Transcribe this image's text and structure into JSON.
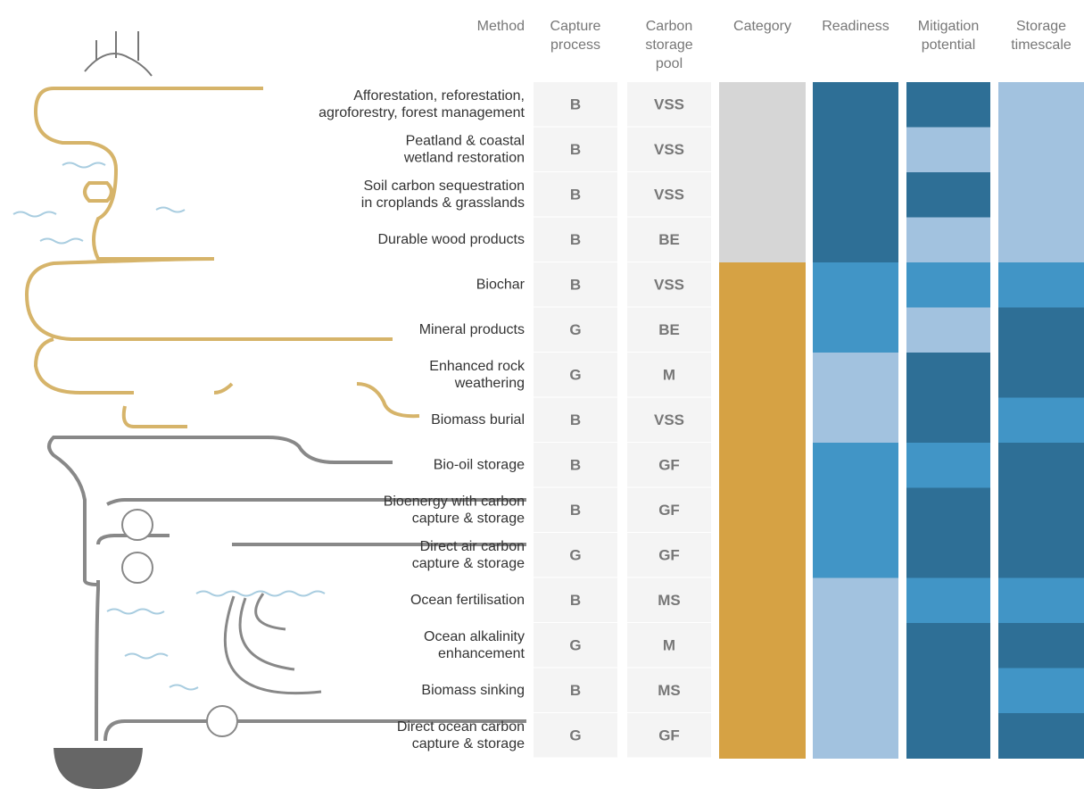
{
  "headers": [
    [
      "Method"
    ],
    [
      "Capture",
      "process"
    ],
    [
      "Carbon",
      "storage",
      "pool"
    ],
    [
      "Category"
    ],
    [
      "Readiness"
    ],
    [
      "Mitigation",
      "potential"
    ],
    [
      "Storage",
      "timescale"
    ]
  ],
  "rows": [
    {
      "method": [
        "Afforestation, reforestation,",
        "agroforestry, forest management"
      ],
      "capture": "B",
      "pool": "VSS",
      "colors": [
        "#d6d6d6",
        "#2e6f96",
        "#2e6f96",
        "#a2c2df"
      ]
    },
    {
      "method": [
        "Peatland & coastal",
        "wetland restoration"
      ],
      "capture": "B",
      "pool": "VSS",
      "colors": [
        "#d6d6d6",
        "#2e6f96",
        "#a2c2df",
        "#a2c2df"
      ]
    },
    {
      "method": [
        "Soil carbon sequestration",
        "in croplands & grasslands"
      ],
      "capture": "B",
      "pool": "VSS",
      "colors": [
        "#d6d6d6",
        "#2e6f96",
        "#2e6f96",
        "#a2c2df"
      ]
    },
    {
      "method": [
        "Durable wood products"
      ],
      "capture": "B",
      "pool": "BE",
      "colors": [
        "#d6d6d6",
        "#2e6f96",
        "#a2c2df",
        "#a2c2df"
      ]
    },
    {
      "method": [
        "Biochar"
      ],
      "capture": "B",
      "pool": "VSS",
      "colors": [
        "#d6a244",
        "#4195c6",
        "#4195c6",
        "#4195c6"
      ]
    },
    {
      "method": [
        "Mineral products"
      ],
      "capture": "G",
      "pool": "BE",
      "colors": [
        "#d6a244",
        "#4195c6",
        "#a2c2df",
        "#2e6f96"
      ]
    },
    {
      "method": [
        "Enhanced rock",
        "weathering"
      ],
      "capture": "G",
      "pool": "M",
      "colors": [
        "#d6a244",
        "#a2c2df",
        "#2e6f96",
        "#2e6f96"
      ]
    },
    {
      "method": [
        "Biomass burial"
      ],
      "capture": "B",
      "pool": "VSS",
      "colors": [
        "#d6a244",
        "#a2c2df",
        "#2e6f96",
        "#4195c6"
      ]
    },
    {
      "method": [
        "Bio-oil storage"
      ],
      "capture": "B",
      "pool": "GF",
      "colors": [
        "#d6a244",
        "#4195c6",
        "#4195c6",
        "#2e6f96"
      ]
    },
    {
      "method": [
        "Bioenergy with carbon",
        "capture & storage"
      ],
      "capture": "B",
      "pool": "GF",
      "colors": [
        "#d6a244",
        "#4195c6",
        "#2e6f96",
        "#2e6f96"
      ]
    },
    {
      "method": [
        "Direct air carbon",
        "capture & storage"
      ],
      "capture": "G",
      "pool": "GF",
      "colors": [
        "#d6a244",
        "#4195c6",
        "#2e6f96",
        "#2e6f96"
      ]
    },
    {
      "method": [
        "Ocean fertilisation"
      ],
      "capture": "B",
      "pool": "MS",
      "colors": [
        "#d6a244",
        "#a2c2df",
        "#4195c6",
        "#4195c6"
      ]
    },
    {
      "method": [
        "Ocean alkalinity",
        "enhancement"
      ],
      "capture": "G",
      "pool": "M",
      "colors": [
        "#d6a244",
        "#a2c2df",
        "#2e6f96",
        "#2e6f96"
      ]
    },
    {
      "method": [
        "Biomass sinking"
      ],
      "capture": "B",
      "pool": "MS",
      "colors": [
        "#d6a244",
        "#a2c2df",
        "#2e6f96",
        "#4195c6"
      ]
    },
    {
      "method": [
        "Direct ocean carbon",
        "capture & storage"
      ],
      "capture": "G",
      "pool": "GF",
      "colors": [
        "#d6a244",
        "#a2c2df",
        "#2e6f96",
        "#2e6f96"
      ]
    }
  ]
}
